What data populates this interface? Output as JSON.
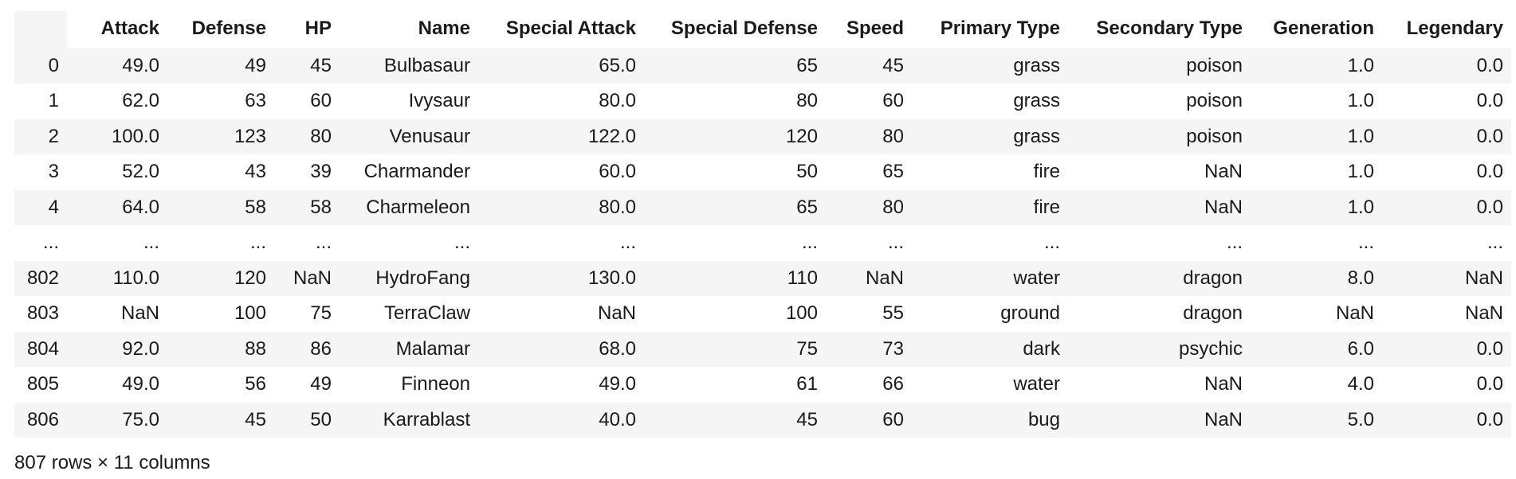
{
  "table": {
    "index_header": "",
    "columns": [
      "Attack",
      "Defense",
      "HP",
      "Name",
      "Special Attack",
      "Special Defense",
      "Speed",
      "Primary Type",
      "Secondary Type",
      "Generation",
      "Legendary"
    ],
    "rows": [
      {
        "index": "0",
        "cells": [
          "49.0",
          "49",
          "45",
          "Bulbasaur",
          "65.0",
          "65",
          "45",
          "grass",
          "poison",
          "1.0",
          "0.0"
        ]
      },
      {
        "index": "1",
        "cells": [
          "62.0",
          "63",
          "60",
          "Ivysaur",
          "80.0",
          "80",
          "60",
          "grass",
          "poison",
          "1.0",
          "0.0"
        ]
      },
      {
        "index": "2",
        "cells": [
          "100.0",
          "123",
          "80",
          "Venusaur",
          "122.0",
          "120",
          "80",
          "grass",
          "poison",
          "1.0",
          "0.0"
        ]
      },
      {
        "index": "3",
        "cells": [
          "52.0",
          "43",
          "39",
          "Charmander",
          "60.0",
          "50",
          "65",
          "fire",
          "NaN",
          "1.0",
          "0.0"
        ]
      },
      {
        "index": "4",
        "cells": [
          "64.0",
          "58",
          "58",
          "Charmeleon",
          "80.0",
          "65",
          "80",
          "fire",
          "NaN",
          "1.0",
          "0.0"
        ]
      },
      {
        "index": "...",
        "cells": [
          "...",
          "...",
          "...",
          "...",
          "...",
          "...",
          "...",
          "...",
          "...",
          "...",
          "..."
        ]
      },
      {
        "index": "802",
        "cells": [
          "110.0",
          "120",
          "NaN",
          "HydroFang",
          "130.0",
          "110",
          "NaN",
          "water",
          "dragon",
          "8.0",
          "NaN"
        ]
      },
      {
        "index": "803",
        "cells": [
          "NaN",
          "100",
          "75",
          "TerraClaw",
          "NaN",
          "100",
          "55",
          "ground",
          "dragon",
          "NaN",
          "NaN"
        ]
      },
      {
        "index": "804",
        "cells": [
          "92.0",
          "88",
          "86",
          "Malamar",
          "68.0",
          "75",
          "73",
          "dark",
          "psychic",
          "6.0",
          "0.0"
        ]
      },
      {
        "index": "805",
        "cells": [
          "49.0",
          "56",
          "49",
          "Finneon",
          "49.0",
          "61",
          "66",
          "water",
          "NaN",
          "4.0",
          "0.0"
        ]
      },
      {
        "index": "806",
        "cells": [
          "75.0",
          "45",
          "50",
          "Karrablast",
          "40.0",
          "45",
          "60",
          "bug",
          "NaN",
          "5.0",
          "0.0"
        ]
      }
    ]
  },
  "footer": {
    "shape_text": "807 rows × 11 columns"
  }
}
